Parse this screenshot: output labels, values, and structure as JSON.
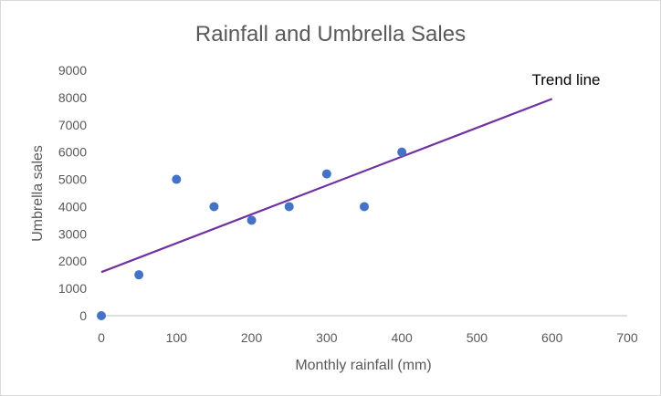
{
  "colors": {
    "point": "#4472c4",
    "trend": "#7030a0",
    "axis": "#bfbfbf",
    "text": "#595959"
  },
  "chart_data": {
    "type": "scatter",
    "title": "Rainfall and Umbrella Sales",
    "xlabel": "Monthly rainfall (mm)",
    "ylabel": "Umbrella sales",
    "xlim": [
      0,
      700
    ],
    "ylim": [
      0,
      9000
    ],
    "xticks": [
      0,
      100,
      200,
      300,
      400,
      500,
      600,
      700
    ],
    "yticks": [
      0,
      1000,
      2000,
      3000,
      4000,
      5000,
      6000,
      7000,
      8000,
      9000
    ],
    "grid": false,
    "legend": "none",
    "series": [
      {
        "name": "Umbrella sales",
        "points": [
          {
            "x": 0,
            "y": 0
          },
          {
            "x": 50,
            "y": 1500
          },
          {
            "x": 100,
            "y": 5000
          },
          {
            "x": 150,
            "y": 4000
          },
          {
            "x": 200,
            "y": 3500
          },
          {
            "x": 250,
            "y": 4000
          },
          {
            "x": 300,
            "y": 5200
          },
          {
            "x": 350,
            "y": 4000
          },
          {
            "x": 400,
            "y": 6000
          }
        ]
      }
    ],
    "trendline": {
      "label": "Trend line",
      "start": {
        "x": 0,
        "y": 1600
      },
      "end": {
        "x": 600,
        "y": 7950
      }
    }
  }
}
